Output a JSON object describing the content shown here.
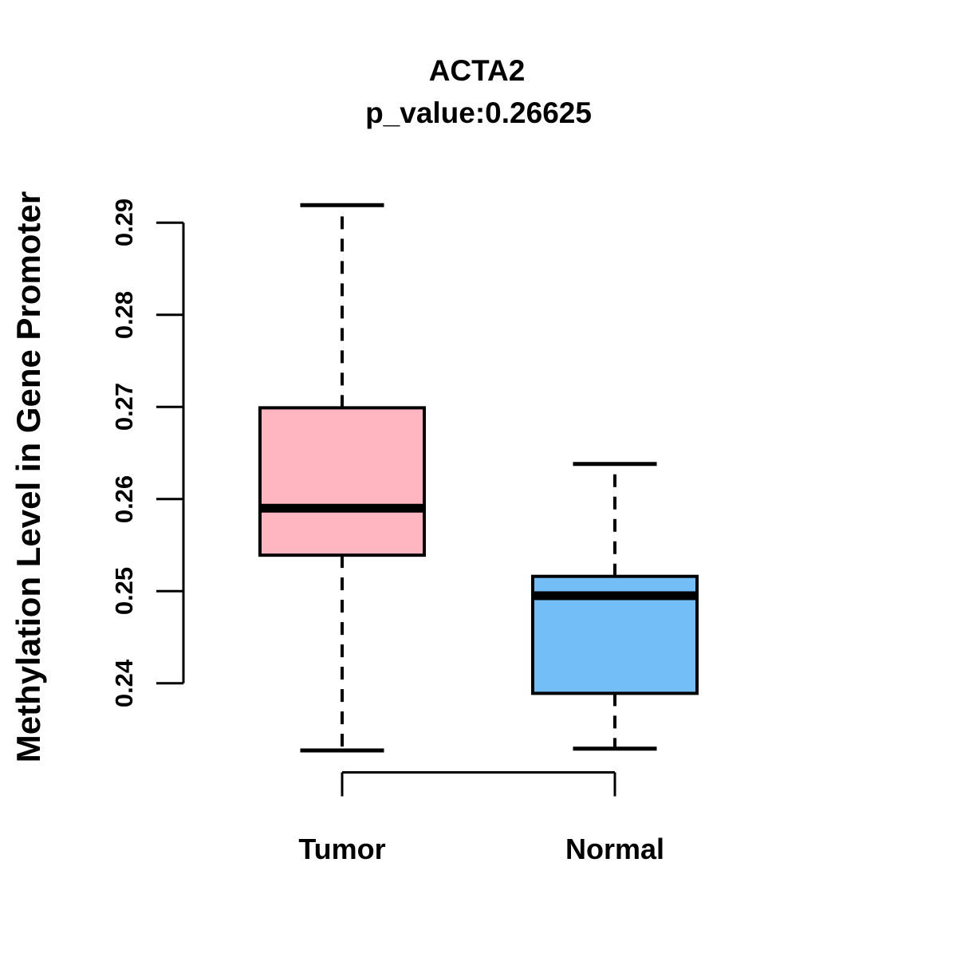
{
  "chart_data": {
    "type": "boxplot",
    "title": "ACTA2",
    "subtitle": "p_value:0.26625",
    "ylabel": "Methylation Level in Gene Promoter",
    "xlabel": "",
    "categories": [
      "Tumor",
      "Normal"
    ],
    "yticks": [
      0.24,
      0.25,
      0.26,
      0.27,
      0.28,
      0.29
    ],
    "ytick_labels": [
      "0.24",
      "0.25",
      "0.26",
      "0.27",
      "0.28",
      "0.29"
    ],
    "ylim": [
      0.2327,
      0.2919
    ],
    "grid": false,
    "legend_position": "none",
    "series": [
      {
        "name": "Tumor",
        "color": "#FFB6C1",
        "whisker_low": 0.2327,
        "q1": 0.2539,
        "median": 0.259,
        "q3": 0.2699,
        "whisker_high": 0.2919,
        "outliers": []
      },
      {
        "name": "Normal",
        "color": "#74BEF8",
        "whisker_low": 0.2329,
        "q1": 0.2389,
        "median": 0.2495,
        "q3": 0.2516,
        "whisker_high": 0.2638,
        "outliers": []
      }
    ],
    "colors": {
      "box_border": "#000000",
      "median": "#000000",
      "axis": "#000000",
      "background": "#ffffff"
    }
  }
}
